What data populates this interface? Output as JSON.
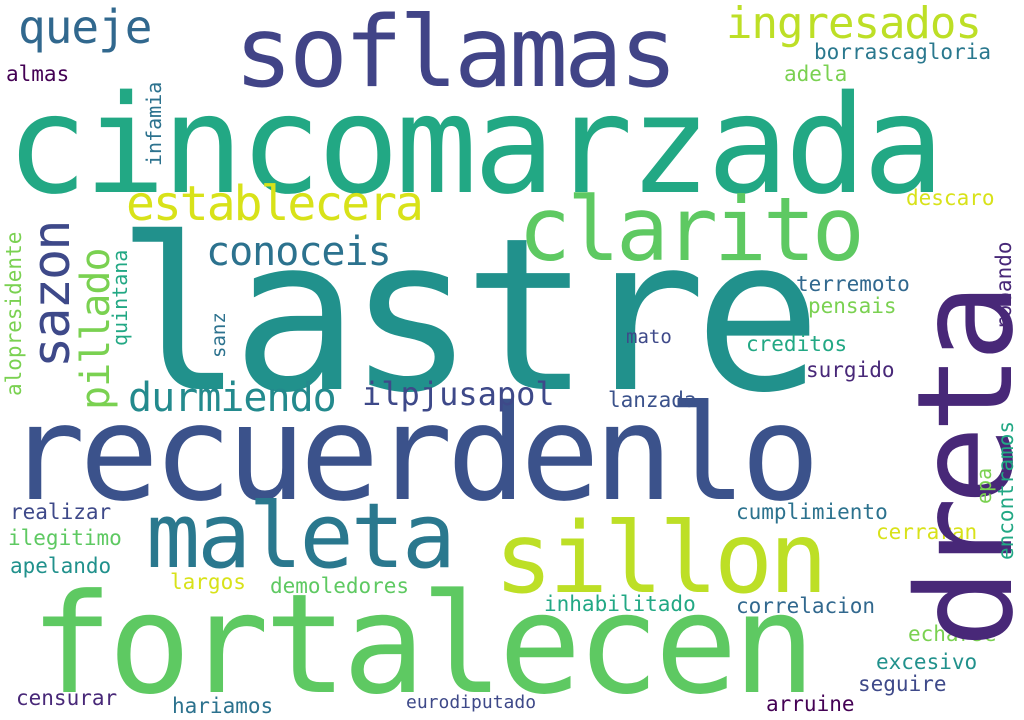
{
  "words": {
    "cincomarzada": {
      "text": "cincomarzada",
      "color": "#22a884"
    },
    "lastre": {
      "text": "lastre",
      "color": "#21918c"
    },
    "recuerdenlo": {
      "text": "recuerdenlo",
      "color": "#3b528b"
    },
    "fortalecen": {
      "text": "fortalecen",
      "color": "#5ec962"
    },
    "soflamas": {
      "text": "soflamas",
      "color": "#414487"
    },
    "dreta": {
      "text": "dreta",
      "color": "#482878"
    },
    "sillon": {
      "text": "sillon",
      "color": "#bddf26"
    },
    "maleta": {
      "text": "maleta",
      "color": "#2a788e"
    },
    "clarito": {
      "text": "clarito",
      "color": "#5ec962"
    },
    "establecera": {
      "text": "establecera",
      "color": "#d8e219"
    },
    "ingresados": {
      "text": "ingresados",
      "color": "#bddf26"
    },
    "queje": {
      "text": "queje",
      "color": "#31688e"
    },
    "sazon": {
      "text": "sazon",
      "color": "#3e4989"
    },
    "pillado": {
      "text": "pillado",
      "color": "#7ad151"
    },
    "conoceis": {
      "text": "conoceis",
      "color": "#2c728e"
    },
    "durmiendo": {
      "text": "durmiendo",
      "color": "#238a8d"
    },
    "ilpjusapol": {
      "text": "ilpjusapol",
      "color": "#3e4989"
    },
    "borrascagloria": {
      "text": "borrascagloria",
      "color": "#2a788e"
    },
    "adela": {
      "text": "adela",
      "color": "#7ad151"
    },
    "almas": {
      "text": "almas",
      "color": "#440154"
    },
    "infamia": {
      "text": "infamia",
      "color": "#2c728e"
    },
    "descaro": {
      "text": "descaro",
      "color": "#d8e219"
    },
    "robando": {
      "text": "robando",
      "color": "#482878"
    },
    "terremoto": {
      "text": "terremoto",
      "color": "#31688e"
    },
    "pensais": {
      "text": "pensais",
      "color": "#7ad151"
    },
    "creditos": {
      "text": "creditos",
      "color": "#22a884"
    },
    "surgido": {
      "text": "surgido",
      "color": "#482878"
    },
    "mato": {
      "text": "mato",
      "color": "#3e4989"
    },
    "lanzada": {
      "text": "lanzada",
      "color": "#3b528b"
    },
    "quintana": {
      "text": "quintana",
      "color": "#22a884"
    },
    "sanz": {
      "text": "sanz",
      "color": "#2c728e"
    },
    "alopresidente": {
      "text": "alopresidente",
      "color": "#7ad151"
    },
    "realizar": {
      "text": "realizar",
      "color": "#3e4989"
    },
    "ilegitimo": {
      "text": "ilegitimo",
      "color": "#5ec962"
    },
    "apelando": {
      "text": "apelando",
      "color": "#21918c"
    },
    "largos": {
      "text": "largos",
      "color": "#d8e219"
    },
    "demoledores": {
      "text": "demoledores",
      "color": "#5ec962"
    },
    "cumplimiento": {
      "text": "cumplimiento",
      "color": "#2c728e"
    },
    "cerraran": {
      "text": "cerraran",
      "color": "#d8e219"
    },
    "epa": {
      "text": "epa",
      "color": "#7ad151"
    },
    "encontramos": {
      "text": "encontramos",
      "color": "#22a884"
    },
    "inhabilitado": {
      "text": "inhabilitado",
      "color": "#22a884"
    },
    "correlacion": {
      "text": "correlacion",
      "color": "#31688e"
    },
    "echarse": {
      "text": "echarse",
      "color": "#7ad151"
    },
    "excesivo": {
      "text": "excesivo",
      "color": "#21918c"
    },
    "seguire": {
      "text": "seguire",
      "color": "#3e4989"
    },
    "censurar": {
      "text": "censurar",
      "color": "#482878"
    },
    "hariamos": {
      "text": "hariamos",
      "color": "#2c728e"
    },
    "eurodiputado": {
      "text": "eurodiputado",
      "color": "#3e4989"
    },
    "arruine": {
      "text": "arruine",
      "color": "#440154"
    }
  }
}
